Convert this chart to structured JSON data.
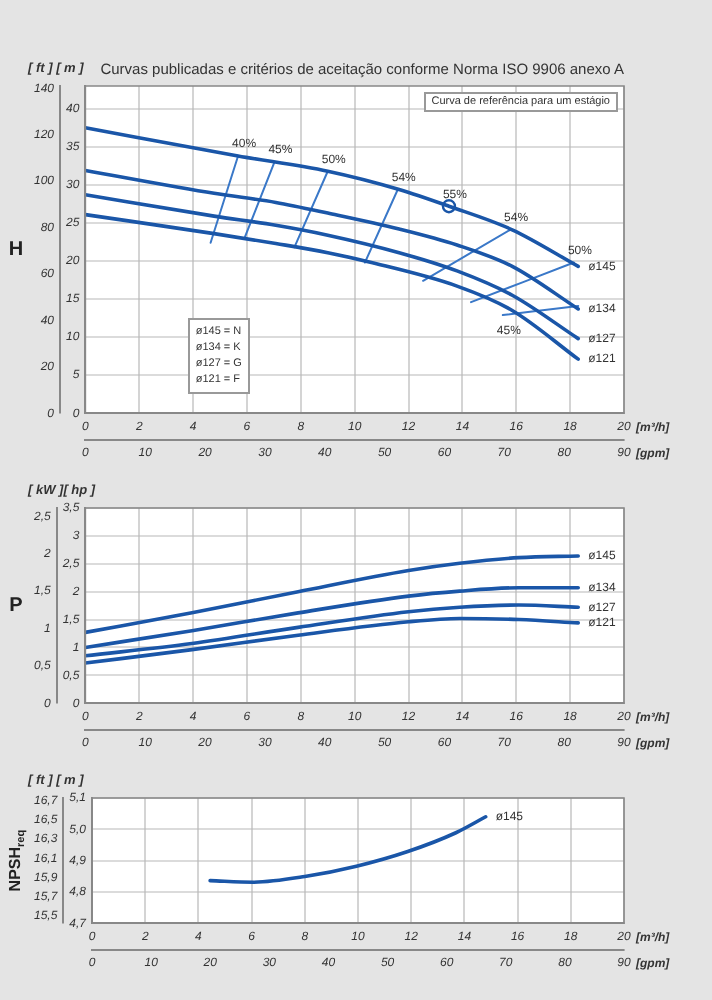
{
  "chart_data": [
    {
      "type": "line",
      "title": "Curvas publicadas e critérios de aceitação conforme Norma ISO 9906 anexo A",
      "ylabel": "H",
      "xlabel": "[m³/h]",
      "x2label": "[gpm]",
      "annotations": [
        "[ ft ]  [ m ]",
        "Curva de referência para um estágio",
        "ø145 = N",
        "ø134 = K",
        "ø127 = G",
        "ø121 = F",
        "40%",
        "45%",
        "50%",
        "54%",
        "54%",
        "50%",
        "45%",
        "55%"
      ],
      "xlim": [
        0,
        20
      ],
      "xticks": [
        0,
        2,
        4,
        6,
        8,
        10,
        12,
        14,
        16,
        18,
        20
      ],
      "x2lim": [
        0,
        90
      ],
      "x2ticks": [
        0,
        10,
        20,
        30,
        40,
        50,
        60,
        70,
        80,
        90
      ],
      "ylim": [
        0,
        141
      ],
      "yticks": [
        0,
        20,
        40,
        60,
        80,
        100,
        120,
        140
      ],
      "y2lim": [
        0,
        43
      ],
      "y2ticks": [
        0,
        5,
        10,
        15,
        20,
        25,
        30,
        35,
        40
      ],
      "grid": true,
      "marker": "none",
      "line_style": "solid",
      "series": [
        {
          "name": "ø145",
          "color": "#1a56a8",
          "axis": "y2",
          "x": [
            0,
            5.67,
            9,
            11.65,
            13.5,
            15.85,
            18.3
          ],
          "values": [
            37.5,
            33.8,
            31.8,
            29.4,
            27.2,
            24.1,
            19.3
          ]
        },
        {
          "name": "ø134",
          "color": "#1a56a8",
          "axis": "y2",
          "x": [
            0,
            4.78,
            7.07,
            9,
            11.65,
            13.8,
            15.85,
            18.3
          ],
          "values": [
            31.9,
            28.9,
            27.7,
            26.3,
            24.2,
            22.1,
            19.3,
            13.7
          ]
        },
        {
          "name": "ø127",
          "color": "#1a56a8",
          "axis": "y2",
          "x": [
            0,
            4.78,
            7.07,
            9,
            11.65,
            13.8,
            15.85,
            18.3
          ],
          "values": [
            28.7,
            25.9,
            24.7,
            23.4,
            21.1,
            18.7,
            15.5,
            9.8
          ]
        },
        {
          "name": "ø121",
          "color": "#1a56a8",
          "axis": "y2",
          "x": [
            0,
            4.78,
            7.07,
            9,
            10.5,
            13.8,
            15.85,
            18.3
          ],
          "values": [
            26.1,
            23.6,
            22.3,
            21.1,
            19.9,
            16.7,
            13.5,
            7.1
          ]
        },
        {
          "color": "#3a78c8",
          "axis": "y2",
          "x": [
            5.67,
            4.65
          ],
          "values": [
            33.8,
            22.4
          ]
        },
        {
          "color": "#3a78c8",
          "axis": "y2",
          "x": [
            7.02,
            5.93
          ],
          "values": [
            33.0,
            23.2
          ]
        },
        {
          "color": "#3a78c8",
          "axis": "y2",
          "x": [
            9.0,
            7.76
          ],
          "values": [
            31.8,
            21.8
          ]
        },
        {
          "color": "#3a78c8",
          "axis": "y2",
          "x": [
            11.6,
            10.38
          ],
          "values": [
            29.4,
            19.8
          ]
        },
        {
          "color": "#3a78c8",
          "axis": "y2",
          "x": [
            15.77,
            12.54
          ],
          "values": [
            24.1,
            17.4
          ]
        },
        {
          "color": "#3a78c8",
          "axis": "y2",
          "x": [
            18.14,
            14.32
          ],
          "values": [
            19.8,
            14.6
          ]
        },
        {
          "color": "#3a78c8",
          "axis": "y2",
          "x": [
            15.5,
            18.3
          ],
          "values": [
            12.9,
            14.1
          ]
        },
        {
          "type": "scatter",
          "marker": "circle",
          "color": "#1a56a8",
          "axis": "y2",
          "x": [
            13.5
          ],
          "values": [
            27.2
          ]
        }
      ]
    },
    {
      "type": "line",
      "ylabel": "P",
      "xlabel": "[m³/h]",
      "x2label": "[gpm]",
      "annotations": [
        "[ kW ][ hp ]"
      ],
      "xlim": [
        0,
        20
      ],
      "xticks": [
        0,
        2,
        4,
        6,
        8,
        10,
        12,
        14,
        16,
        18,
        20
      ],
      "x2lim": [
        0,
        90
      ],
      "x2ticks": [
        0,
        10,
        20,
        30,
        40,
        50,
        60,
        70,
        80,
        90
      ],
      "ylim": [
        0,
        2.61
      ],
      "yticks": [
        0,
        {
          "value": 0.5,
          "label": "0,5"
        },
        1,
        {
          "value": 1.5,
          "label": "1,5"
        },
        2,
        {
          "value": 2.5,
          "label": "2,5"
        }
      ],
      "y2lim": [
        0,
        3.5
      ],
      "y2ticks": [
        0,
        {
          "value": 0.5,
          "label": "0,5"
        },
        1,
        {
          "value": 1.5,
          "label": "1,5"
        },
        2,
        {
          "value": 2.5,
          "label": "2,5"
        },
        3,
        {
          "value": 3.5,
          "label": "3,5"
        }
      ],
      "grid": true,
      "marker": "none",
      "line_style": "solid",
      "x": [
        0,
        3.96,
        7.9,
        12,
        13.9,
        16.1,
        18.3
      ],
      "series": [
        {
          "name": "ø145",
          "color": "#1a56a8",
          "axis": "y2",
          "values": [
            1.27,
            1.62,
            2.0,
            2.38,
            2.51,
            2.61,
            2.64
          ]
        },
        {
          "name": "ø134",
          "color": "#1a56a8",
          "axis": "y2",
          "values": [
            1.0,
            1.3,
            1.62,
            1.92,
            2.01,
            2.07,
            2.07
          ]
        },
        {
          "name": "ø127",
          "color": "#1a56a8",
          "axis": "y2",
          "values": [
            0.85,
            1.07,
            1.36,
            1.64,
            1.72,
            1.76,
            1.72
          ]
        },
        {
          "name": "ø121",
          "color": "#1a56a8",
          "axis": "y2",
          "values": [
            0.72,
            0.96,
            1.22,
            1.46,
            1.52,
            1.5,
            1.44
          ]
        }
      ]
    },
    {
      "type": "line",
      "ylabel": "NPSH$_{req}$",
      "xlabel": "[m³/h]",
      "x2label": "[gpm]",
      "annotations": [
        "[ ft ]  [ m ]"
      ],
      "xlim": [
        0,
        20
      ],
      "xticks": [
        0,
        2,
        4,
        6,
        8,
        10,
        12,
        14,
        16,
        18,
        20
      ],
      "x2lim": [
        0,
        90
      ],
      "x2ticks": [
        0,
        10,
        20,
        30,
        40,
        50,
        60,
        70,
        80,
        90
      ],
      "ylim": [
        15.42,
        16.73
      ],
      "yticks": [
        {
          "value": 15.5,
          "label": "15,5"
        },
        {
          "value": 15.7,
          "label": "15,7"
        },
        {
          "value": 15.9,
          "label": "15,9"
        },
        {
          "value": 16.1,
          "label": "16,1"
        },
        {
          "value": 16.3,
          "label": "16,3"
        },
        {
          "value": 16.5,
          "label": "16,5"
        },
        {
          "value": 16.7,
          "label": "16,7"
        }
      ],
      "y2lim": [
        4.7,
        5.1
      ],
      "y2ticks": [
        {
          "value": 4.7,
          "label": "4,7"
        },
        {
          "value": 4.8,
          "label": "4,8"
        },
        {
          "value": 4.9,
          "label": "4,9"
        },
        {
          "value": 5.0,
          "label": "5,0"
        },
        {
          "value": 5.1,
          "label": "5,1"
        }
      ],
      "grid": true,
      "marker": "none",
      "line_style": "solid",
      "series": [
        {
          "name": "ø145",
          "color": "#1a56a8",
          "axis": "y2",
          "x": [
            4.44,
            6.06,
            8.0,
            9.94,
            11.87,
            13.68,
            14.8
          ],
          "values": [
            4.836,
            4.831,
            4.849,
            4.882,
            4.929,
            4.989,
            5.04
          ]
        }
      ]
    }
  ]
}
